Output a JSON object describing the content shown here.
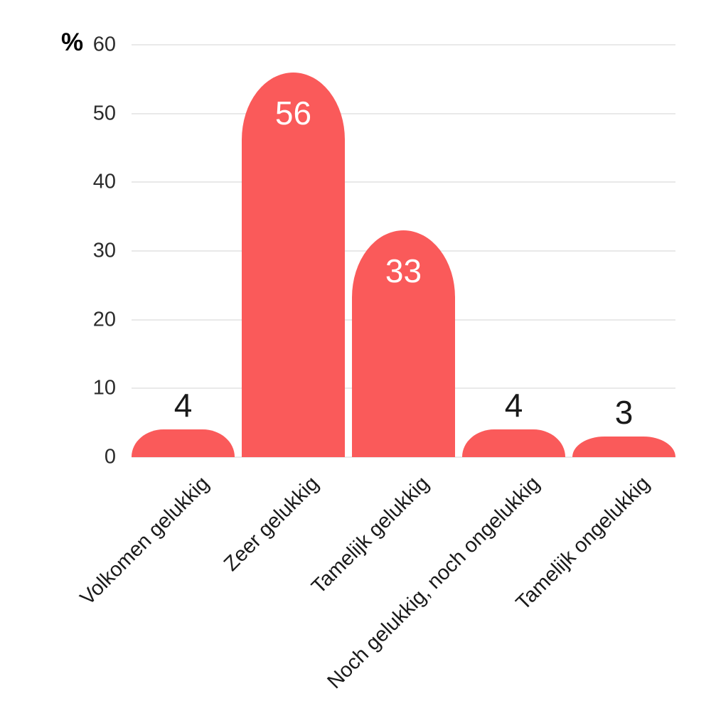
{
  "chart_data": {
    "type": "bar",
    "title": "",
    "ylabel": "%",
    "xlabel": "",
    "categories": [
      "Volkomen gelukkig",
      "Zeer gelukkig",
      "Tamelijk gelukkig",
      "Noch gelukkig, noch ongelukkig",
      "Tamelijk ongelukkig"
    ],
    "values": [
      4,
      56,
      33,
      4,
      3
    ],
    "yticks": [
      0,
      10,
      20,
      30,
      40,
      50,
      60
    ],
    "ylim": [
      0,
      60
    ],
    "grid": "horizontal-on",
    "legend": "none",
    "bar_corner_style": "rounded-top",
    "value_label_placement": "inside-top for large bars, above for small bars"
  },
  "colors": {
    "background": "#ffffff",
    "bar": "#fa5a5a",
    "gridline": "#e9e9e9",
    "ytick_text": "#2b2b2b",
    "xtick_text": "#1a1a1a",
    "value_label_inside": "#ffffff",
    "value_label_outside": "#1a1a1a",
    "y_unit_label": "#000000"
  }
}
